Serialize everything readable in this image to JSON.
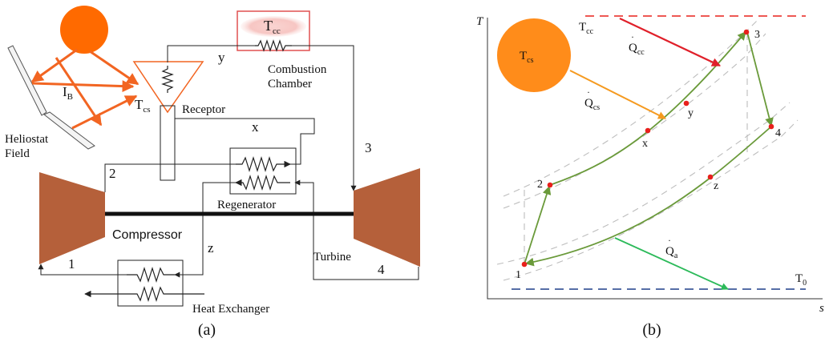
{
  "panel_a": {
    "caption": "(a)",
    "heliostat_label_1": "Heliostat",
    "heliostat_label_2": "Field",
    "ib_base": "I",
    "ib_sub": "B",
    "tcs_base": "T",
    "tcs_sub": "cs",
    "receptor": "Receptor",
    "tcc_base": "T",
    "tcc_sub": "cc",
    "combustion_1": "Combustion",
    "combustion_2": "Chamber",
    "regenerator": "Regenerator",
    "compressor": "Compressor",
    "turbine": "Turbine",
    "heat_exchanger": "Heat Exchanger",
    "state_1": "1",
    "state_2": "2",
    "state_3": "3",
    "state_4": "4",
    "state_x": "x",
    "state_y": "y",
    "state_z": "z",
    "colors": {
      "sun": "#ff6a00",
      "rays": "#f26522",
      "machine": "#b5603a",
      "combustion_box": "#e05050",
      "tcc_glow": "#f7c6c3"
    }
  },
  "panel_b": {
    "caption": "(b)",
    "axis_t": "T",
    "axis_s": "s",
    "tcc_base": "T",
    "tcc_sub": "cc",
    "t0_base": "T",
    "t0_sub": "0",
    "tcs_base": "T",
    "tcs_sub": "cs",
    "qcc_base": "Q",
    "qcc_sub": "cc",
    "qcs_base": "Q",
    "qcs_sub": "cs",
    "qa_base": "Q",
    "qa_sub": "a",
    "points": {
      "p1": "1",
      "p2": "2",
      "p3": "3",
      "p4": "4",
      "px": "x",
      "py": "y",
      "pz": "z"
    },
    "colors": {
      "cycle": "#6a9a3a",
      "point": "#e8201c",
      "tcc_line": "#e8201c",
      "t0_line": "#1f3e8a",
      "sun": "#ff8c1a",
      "qcc_arrow": "#e0202a",
      "qcs_arrow": "#f59a20",
      "qa_arrow": "#2cba5a",
      "isobar": "#bdbdbd"
    }
  }
}
